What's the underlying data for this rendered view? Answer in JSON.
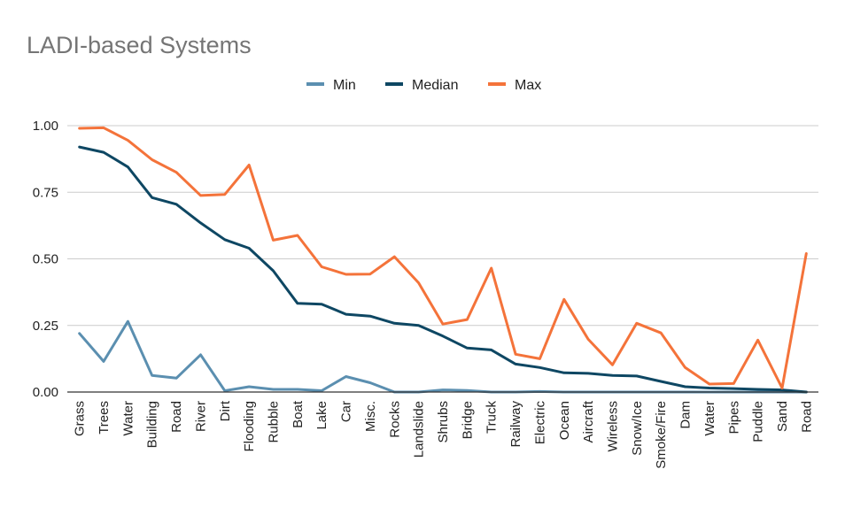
{
  "chart_data": {
    "type": "line",
    "title": "LADI-based Systems",
    "xlabel": "",
    "ylabel": "",
    "ylim": [
      0,
      1
    ],
    "yticks": [
      0,
      0.25,
      0.5,
      0.75,
      1
    ],
    "ytick_labels": [
      "0.00",
      "0.25",
      "0.50",
      "0.75",
      "1.00"
    ],
    "grid": true,
    "legend_position": "top-center",
    "categories": [
      "Grass",
      "Trees",
      "Water",
      "Building",
      "Road",
      "River",
      "Dirt",
      "Flooding",
      "Rubble",
      "Boat",
      "Lake",
      "Car",
      "Misc.",
      "Rocks",
      "Landslide",
      "Shrubs",
      "Bridge",
      "Truck",
      "Railway",
      "Electric",
      "Ocean",
      "Aircraft",
      "Wireless",
      "Snow/Ice",
      "Smoke/Fire",
      "Dam",
      "Water",
      "Pipes",
      "Puddle",
      "Sand",
      "Road"
    ],
    "series": [
      {
        "name": "Min",
        "color": "#5b8fb0",
        "values": [
          0.22,
          0.115,
          0.265,
          0.062,
          0.052,
          0.14,
          0.005,
          0.02,
          0.01,
          0.01,
          0.005,
          0.058,
          0.035,
          0.0,
          0.0,
          0.008,
          0.006,
          0.0,
          0.0,
          0.002,
          0.0,
          0.0,
          0.0,
          0.0,
          0.0,
          0.0,
          0.0,
          0.0,
          0.0,
          0.0,
          0.0
        ]
      },
      {
        "name": "Median",
        "color": "#0e4763",
        "values": [
          0.92,
          0.9,
          0.845,
          0.73,
          0.705,
          0.635,
          0.572,
          0.54,
          0.455,
          0.333,
          0.33,
          0.292,
          0.285,
          0.258,
          0.25,
          0.21,
          0.165,
          0.158,
          0.105,
          0.092,
          0.072,
          0.07,
          0.062,
          0.06,
          0.04,
          0.02,
          0.015,
          0.013,
          0.01,
          0.008,
          0.0
        ]
      },
      {
        "name": "Max",
        "color": "#f4733a",
        "values": [
          0.99,
          0.992,
          0.945,
          0.872,
          0.825,
          0.738,
          0.742,
          0.852,
          0.57,
          0.588,
          0.47,
          0.442,
          0.443,
          0.508,
          0.41,
          0.255,
          0.272,
          0.465,
          0.142,
          0.125,
          0.348,
          0.198,
          0.102,
          0.258,
          0.222,
          0.092,
          0.03,
          0.032,
          0.195,
          0.015,
          0.52
        ]
      }
    ]
  }
}
